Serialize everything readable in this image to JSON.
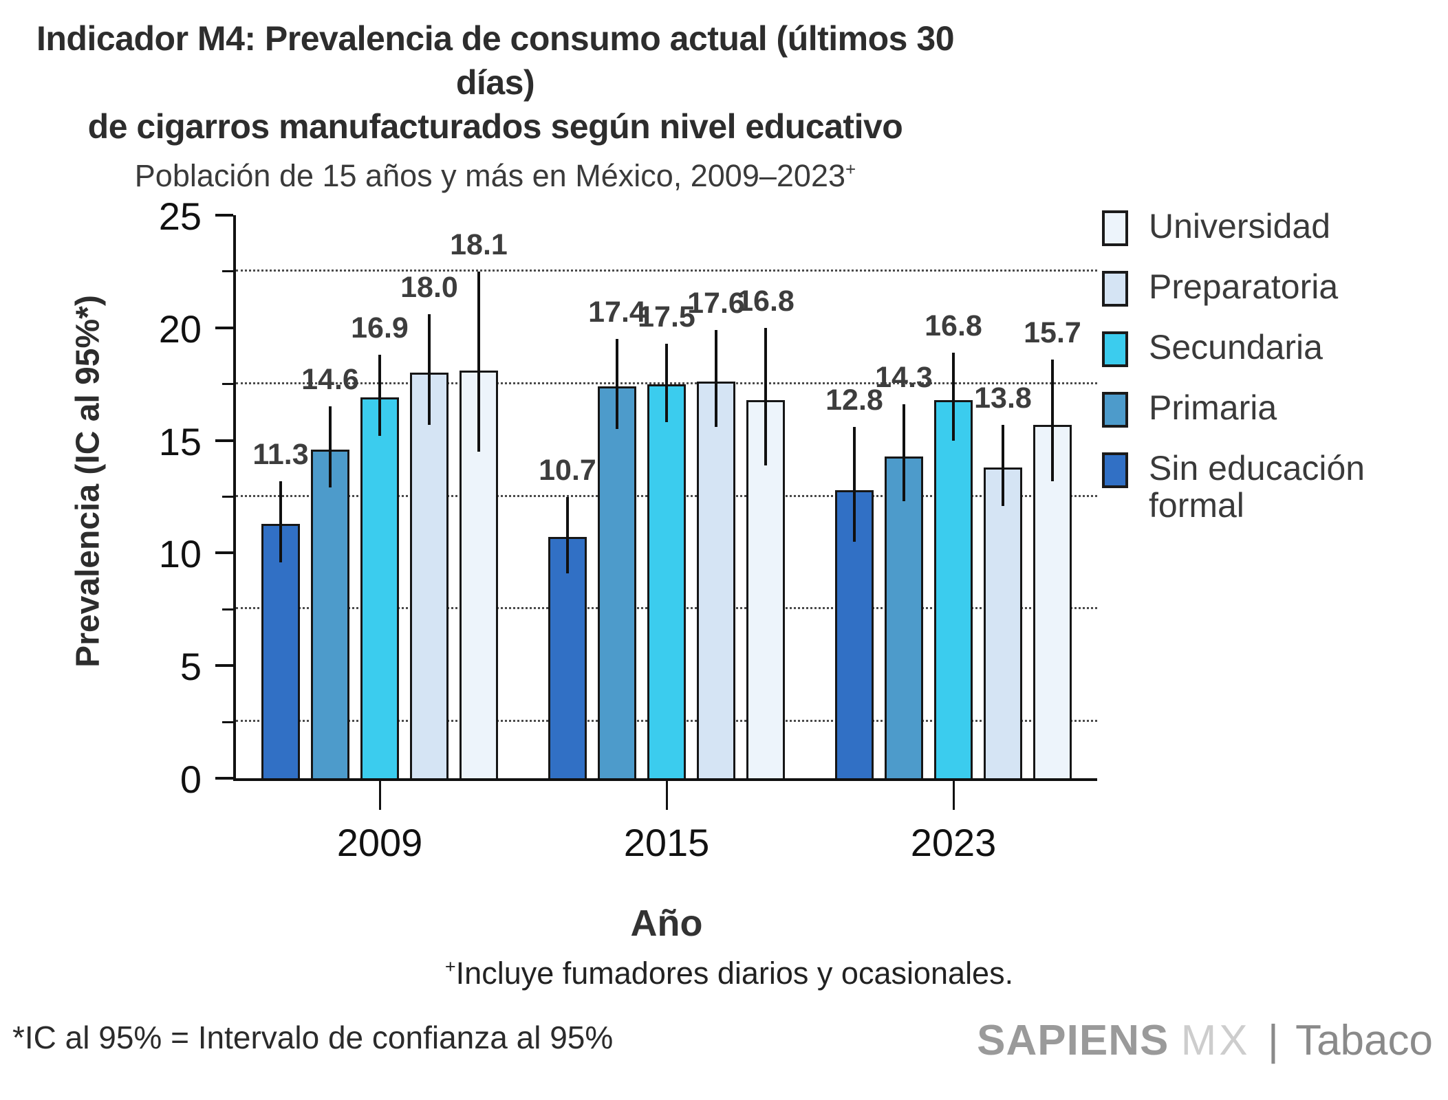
{
  "title": {
    "line1": "Indicador M4: Prevalencia de consumo actual (últimos 30 días)",
    "line2": "de cigarros manufacturados según nivel educativo"
  },
  "subtitle": {
    "text": "Población de 15 años y más en México, 2009–2023",
    "sup": "+"
  },
  "axes": {
    "y_label": "Prevalencia (IC al 95%*)",
    "x_label": "Año"
  },
  "chart_data": {
    "type": "bar",
    "title": "Indicador M4: Prevalencia de consumo actual (últimos 30 días) de cigarros manufacturados según nivel educativo",
    "subtitle": "Población de 15 años y más en México, 2009–2023+",
    "xlabel": "Año",
    "ylabel": "Prevalencia (IC al 95%*)",
    "categories": [
      "2009",
      "2015",
      "2023"
    ],
    "series": [
      {
        "key": "sin-educacion-formal",
        "name": "Sin educación formal",
        "color": "#3170C5",
        "values": [
          11.3,
          10.7,
          12.8
        ],
        "ci_low": [
          9.6,
          9.1,
          10.5
        ],
        "ci_high": [
          13.2,
          12.5,
          15.6
        ]
      },
      {
        "key": "primaria",
        "name": "Primaria",
        "color": "#4D9BCB",
        "values": [
          14.6,
          17.4,
          14.3
        ],
        "ci_low": [
          12.9,
          15.5,
          12.3
        ],
        "ci_high": [
          16.5,
          19.5,
          16.6
        ]
      },
      {
        "key": "secundaria",
        "name": "Secundaria",
        "color": "#3BCCEE",
        "values": [
          16.9,
          17.5,
          16.8
        ],
        "ci_low": [
          15.2,
          15.8,
          15.0
        ],
        "ci_high": [
          18.8,
          19.3,
          18.9
        ]
      },
      {
        "key": "preparatoria",
        "name": "Preparatoria",
        "color": "#D5E4F4",
        "values": [
          18.0,
          17.6,
          13.8
        ],
        "ci_low": [
          15.7,
          15.6,
          12.1
        ],
        "ci_high": [
          20.6,
          19.9,
          15.7
        ]
      },
      {
        "key": "universidad",
        "name": "Universidad",
        "color": "#EDF4FB",
        "values": [
          18.1,
          16.8,
          15.7
        ],
        "ci_low": [
          14.5,
          13.9,
          13.2
        ],
        "ci_high": [
          22.5,
          20.0,
          18.6
        ]
      }
    ],
    "ylim": [
      0,
      25
    ],
    "y_ticks": [
      0,
      5,
      10,
      15,
      20,
      25
    ],
    "y_minor_gridlines": [
      2.5,
      7.5,
      12.5,
      17.5,
      22.5
    ],
    "grid": "horizontal dotted minor gridlines",
    "error_bars": "95% confidence intervals, no caps",
    "value_label_format": "one decimal",
    "legend_position": "right",
    "legend_order": [
      "universidad",
      "preparatoria",
      "secundaria",
      "primaria",
      "sin-educacion-formal"
    ]
  },
  "footnotes": {
    "plus_sup": "+",
    "plus_text": "Incluye fumadores diarios y ocasionales.",
    "ic": "*IC al 95% = Intervalo de confianza al 95%"
  },
  "logo": {
    "part1": "SAPIENS",
    "part2": "MX",
    "divider": "|",
    "part3": "Tabaco"
  }
}
